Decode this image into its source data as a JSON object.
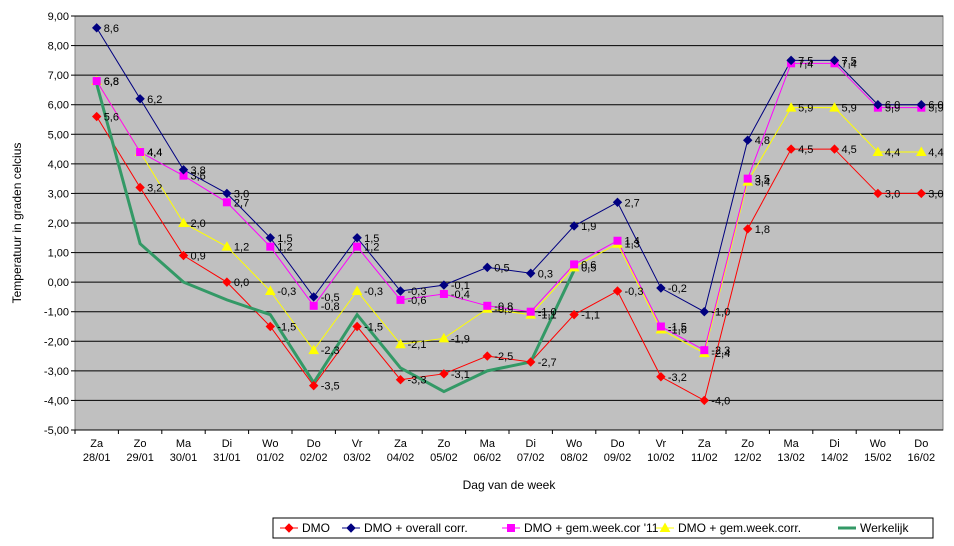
{
  "chart_data": {
    "type": "line",
    "xlabel": "Dag van de week",
    "ylabel": "Temperatuur in graden celcius",
    "ylim": [
      -5,
      9
    ],
    "ytick_step": 1,
    "ytick_labels": [
      "-5,00",
      "-4,00",
      "-3,00",
      "-2,00",
      "-1,00",
      "0,00",
      "1,00",
      "2,00",
      "3,00",
      "4,00",
      "5,00",
      "6,00",
      "7,00",
      "8,00",
      "9,00"
    ],
    "grid": "horizontal",
    "plot_background": "#c0c0c0",
    "legend_position": "bottom-right",
    "categories": [
      [
        "Za",
        "28/01"
      ],
      [
        "Zo",
        "29/01"
      ],
      [
        "Ma",
        "30/01"
      ],
      [
        "Di",
        "31/01"
      ],
      [
        "Wo",
        "01/02"
      ],
      [
        "Do",
        "02/02"
      ],
      [
        "Vr",
        "03/02"
      ],
      [
        "Za",
        "04/02"
      ],
      [
        "Zo",
        "05/02"
      ],
      [
        "Ma",
        "06/02"
      ],
      [
        "Di",
        "07/02"
      ],
      [
        "Wo",
        "08/02"
      ],
      [
        "Do",
        "09/02"
      ],
      [
        "Vr",
        "10/02"
      ],
      [
        "Za",
        "11/02"
      ],
      [
        "Zo",
        "12/02"
      ],
      [
        "Ma",
        "13/02"
      ],
      [
        "Di",
        "14/02"
      ],
      [
        "Wo",
        "15/02"
      ],
      [
        "Do",
        "16/02"
      ]
    ],
    "series": [
      {
        "name": "DMO",
        "color": "#ff0000",
        "marker": "diamond",
        "values": [
          5.6,
          3.2,
          0.9,
          0.0,
          -1.5,
          -3.5,
          -1.5,
          -3.3,
          -3.1,
          -2.5,
          -2.7,
          -1.1,
          -0.3,
          -3.2,
          -4.0,
          1.8,
          4.5,
          4.5,
          3.0,
          3.0
        ],
        "labels": [
          "5,6",
          "3,2",
          "0,9",
          "0,0",
          "-1,5",
          "-3,5",
          "-1,5",
          "-3,3",
          "-3,1",
          "-2,5",
          "-2,7",
          "-1,1",
          "-0,3",
          "-3,2",
          "-4,0",
          "1,8",
          "4,5",
          "4,5",
          "3,0",
          "3,0"
        ]
      },
      {
        "name": "DMO + overall corr.",
        "color": "#000080",
        "marker": "diamond",
        "values": [
          8.6,
          6.2,
          3.8,
          3.0,
          1.5,
          -0.5,
          1.5,
          -0.3,
          -0.1,
          0.5,
          0.3,
          1.9,
          2.7,
          -0.2,
          -1.0,
          4.8,
          7.5,
          7.5,
          6.0,
          6.0
        ],
        "labels": [
          "8,6",
          "6,2",
          "3,8",
          "3,0",
          "1,5",
          "-0,5",
          "1,5",
          "-0,3",
          "-0,1",
          "0,5",
          "0,3",
          "1,9",
          "2,7",
          "-0,2",
          "-1,0",
          "4,8",
          "7,5",
          "7,5",
          "6,0",
          "6,0"
        ]
      },
      {
        "name": "DMO + gem.week.cor '11",
        "color": "#ff00ff",
        "marker": "square",
        "values": [
          6.8,
          4.4,
          3.6,
          2.7,
          1.2,
          -0.8,
          1.2,
          -0.6,
          -0.4,
          -0.8,
          -1.0,
          0.6,
          1.4,
          -1.5,
          -2.3,
          3.5,
          7.4,
          7.4,
          5.9,
          5.9
        ],
        "labels": [
          "6,8",
          "4,4",
          "3,6",
          "2,7",
          "1,2",
          "-0,8",
          "1,2",
          "-0,6",
          "-0,4",
          "-0,8",
          "-1,0",
          "0,6",
          "1,4",
          "-1,5",
          "-2,3",
          "3,5",
          "7,4",
          "7,4",
          "5,9",
          "5,9"
        ]
      },
      {
        "name": "DMO + gem.week.corr.",
        "color": "#ffff00",
        "marker": "triangle",
        "values": [
          6.8,
          4.4,
          2.0,
          1.2,
          -0.3,
          -2.3,
          -0.3,
          -2.1,
          -1.9,
          -0.9,
          -1.1,
          0.5,
          1.3,
          -1.6,
          -2.4,
          3.4,
          5.9,
          5.9,
          4.4,
          4.4
        ],
        "labels": [
          "6,8",
          "4,4",
          "2,0",
          "1,2",
          "-0,3",
          "-2,3",
          "-0,3",
          "-2,1",
          "-1,9",
          "-0,9",
          "-1,1",
          "0,5",
          "1,3",
          "-1,6",
          "-2,4",
          "3,4",
          "5,9",
          "5,9",
          "4,4",
          "4,4"
        ]
      },
      {
        "name": "Werkelijk",
        "color": "#339966",
        "marker": "none",
        "values": [
          6.7,
          1.3,
          0.0,
          -0.6,
          -1.1,
          -3.4,
          -1.1,
          -2.9,
          -3.7,
          -3.0,
          -2.7,
          0.4,
          null,
          null,
          null,
          null,
          null,
          null,
          null,
          null
        ],
        "labels": []
      }
    ]
  }
}
